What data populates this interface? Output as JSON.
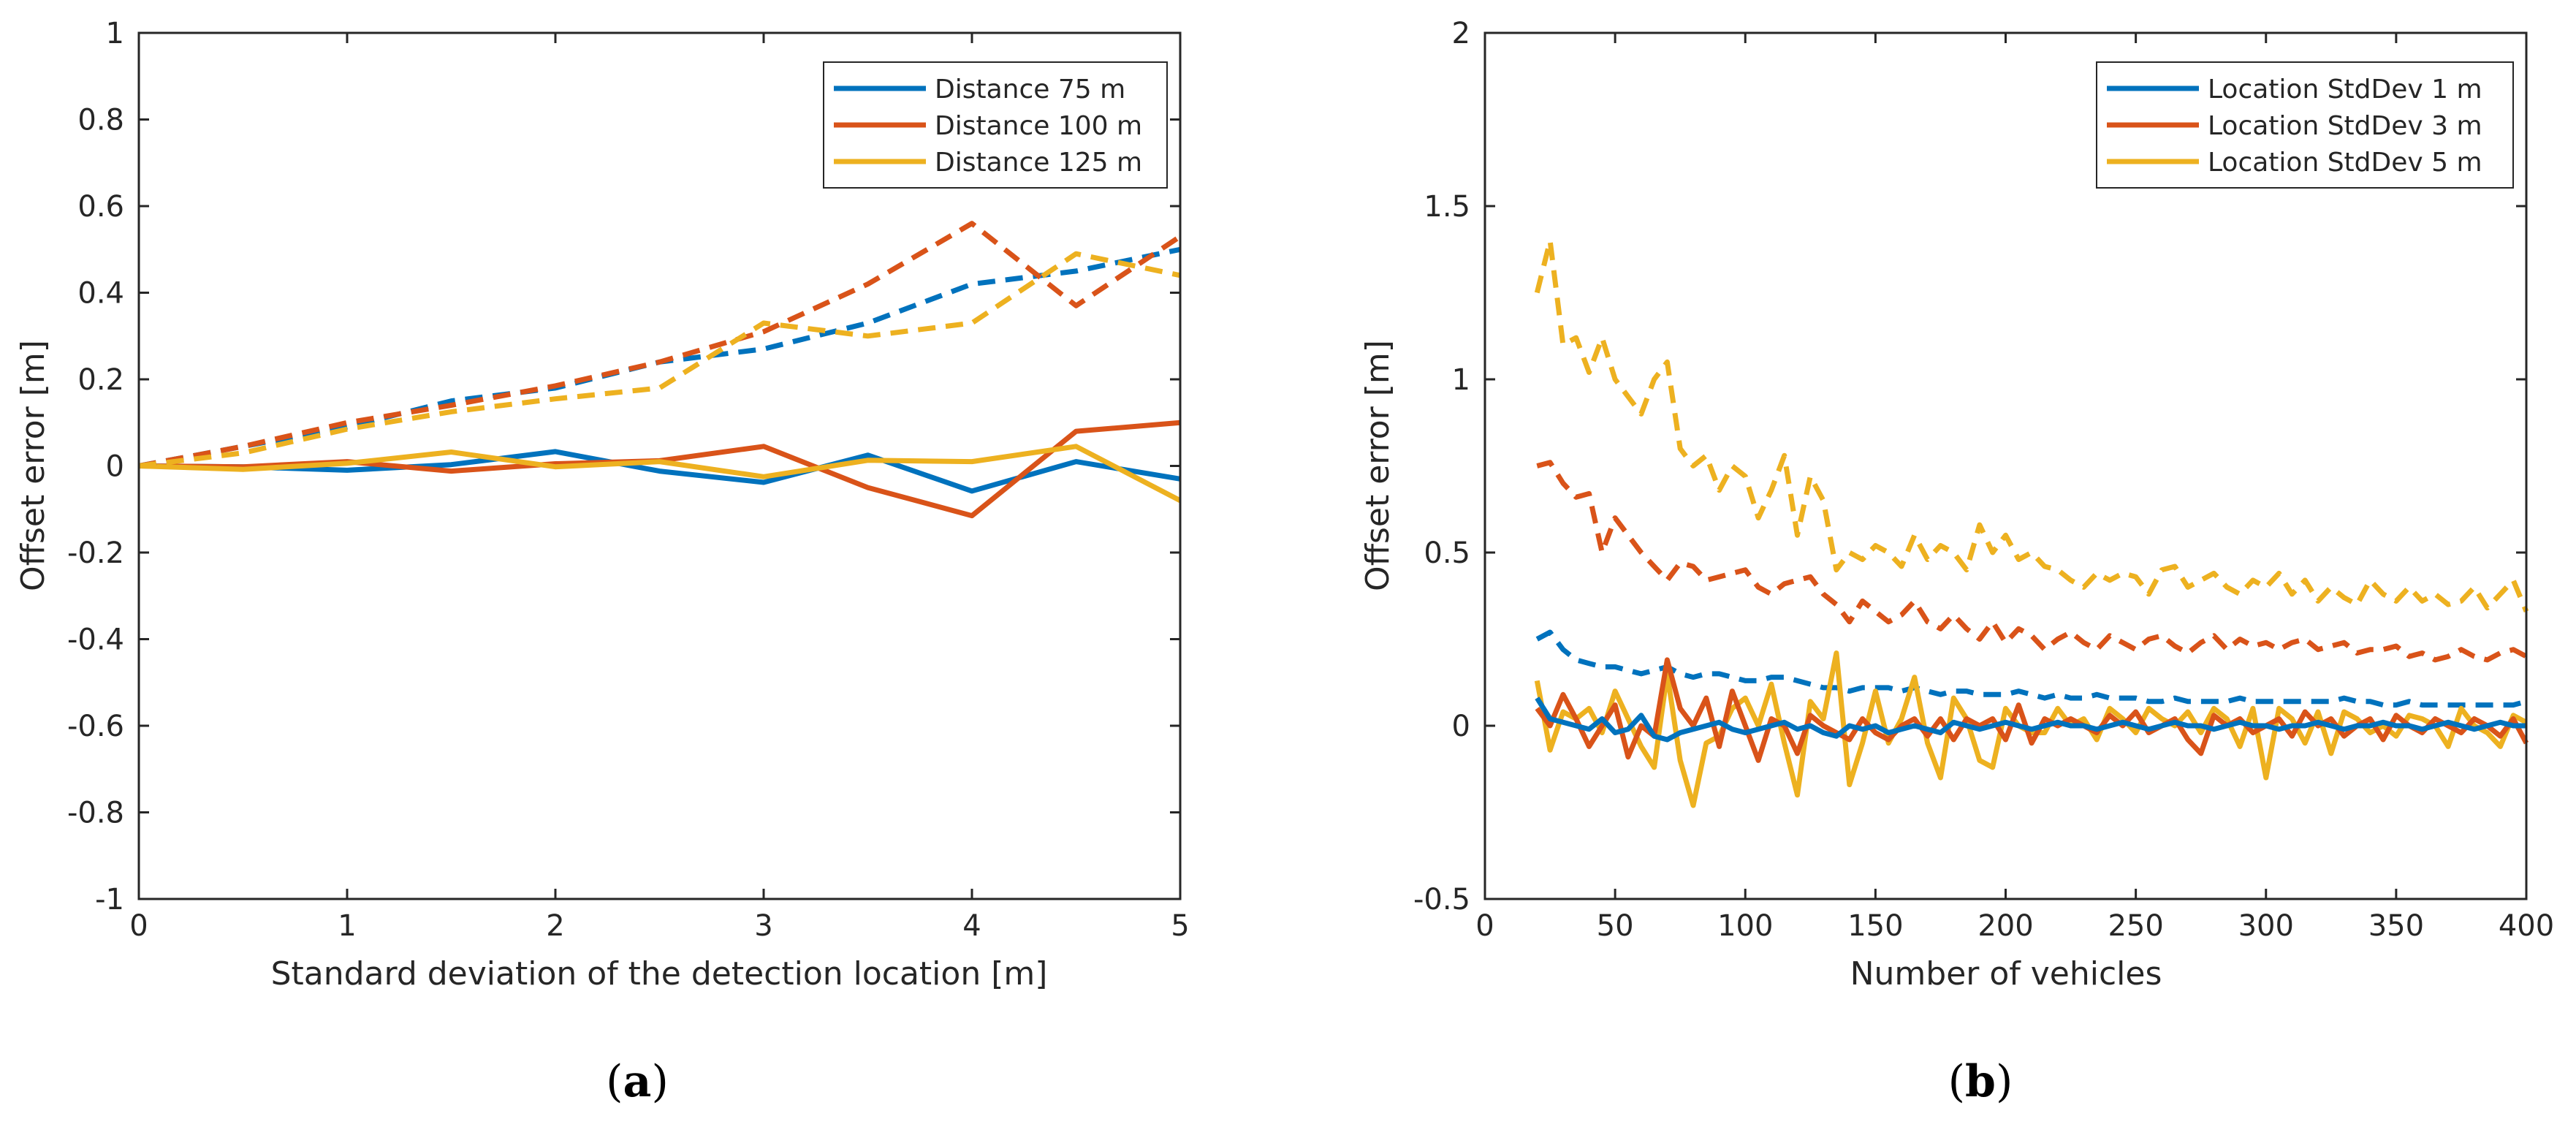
{
  "colors": {
    "blue": "#0072BD",
    "orange": "#D95319",
    "yellow": "#EDB120",
    "axis": "#262626"
  },
  "chart_data": [
    {
      "id": "a",
      "type": "line",
      "caption": "a",
      "xlabel": "Standard deviation of the detection location [m]",
      "ylabel": "Offset error [m]",
      "xlim": [
        0,
        5
      ],
      "ylim": [
        -1,
        1
      ],
      "xticks": [
        0,
        1,
        2,
        3,
        4,
        5
      ],
      "xtick_labels": [
        "0",
        "1",
        "2",
        "3",
        "4",
        "5"
      ],
      "yticks": [
        -1,
        -0.8,
        -0.6,
        -0.4,
        -0.2,
        0,
        0.2,
        0.4,
        0.6,
        0.8,
        1
      ],
      "ytick_labels": [
        "-1",
        "-0.8",
        "-0.6",
        "-0.4",
        "-0.2",
        "0",
        "0.2",
        "0.4",
        "0.6",
        "0.8",
        "1"
      ],
      "legend_position": "top-right",
      "legend": [
        {
          "label": "Distance 75 m",
          "color": "blue"
        },
        {
          "label": "Distance 100 m",
          "color": "orange"
        },
        {
          "label": "Distance 125 m",
          "color": "yellow"
        }
      ],
      "x": [
        0,
        0.5,
        1,
        1.5,
        2,
        2.5,
        3,
        3.5,
        4,
        4.5,
        5
      ],
      "series": [
        {
          "name": "Distance 75 m (solid)",
          "color": "blue",
          "dash": false,
          "values": [
            0,
            -0.002,
            -0.01,
            0.003,
            0.033,
            -0.012,
            -0.038,
            0.025,
            -0.058,
            0.01,
            -0.03
          ]
        },
        {
          "name": "Distance 100 m (solid)",
          "color": "orange",
          "dash": false,
          "values": [
            0,
            -0.002,
            0.01,
            -0.012,
            0.005,
            0.012,
            0.045,
            -0.05,
            -0.115,
            0.08,
            0.1
          ]
        },
        {
          "name": "Distance 125 m (solid)",
          "color": "yellow",
          "dash": false,
          "values": [
            0,
            -0.008,
            0.006,
            0.032,
            -0.002,
            0.01,
            -0.025,
            0.013,
            0.01,
            0.045,
            -0.08
          ]
        },
        {
          "name": "Distance 75 m (dashed)",
          "color": "blue",
          "dash": true,
          "values": [
            0,
            0.045,
            0.09,
            0.15,
            0.18,
            0.24,
            0.27,
            0.33,
            0.42,
            0.45,
            0.5
          ]
        },
        {
          "name": "Distance 100 m (dashed)",
          "color": "orange",
          "dash": true,
          "values": [
            0,
            0.045,
            0.1,
            0.14,
            0.185,
            0.24,
            0.31,
            0.42,
            0.56,
            0.37,
            0.53
          ]
        },
        {
          "name": "Distance 125 m (dashed)",
          "color": "yellow",
          "dash": true,
          "values": [
            0,
            0.03,
            0.085,
            0.125,
            0.155,
            0.18,
            0.33,
            0.3,
            0.33,
            0.49,
            0.44
          ]
        }
      ]
    },
    {
      "id": "b",
      "type": "line",
      "caption": "b",
      "xlabel": "Number of vehicles",
      "ylabel": "Offset error [m]",
      "xlim": [
        0,
        400
      ],
      "ylim": [
        -0.5,
        2
      ],
      "xticks": [
        0,
        50,
        100,
        150,
        200,
        250,
        300,
        350,
        400
      ],
      "xtick_labels": [
        "0",
        "50",
        "100",
        "150",
        "200",
        "250",
        "300",
        "350",
        "400"
      ],
      "yticks": [
        -0.5,
        0,
        0.5,
        1,
        1.5,
        2
      ],
      "ytick_labels": [
        "-0.5",
        "0",
        "0.5",
        "1",
        "1.5",
        "2"
      ],
      "legend_position": "top-right",
      "legend": [
        {
          "label": "Location StdDev 1 m",
          "color": "blue"
        },
        {
          "label": "Location StdDev 3 m",
          "color": "orange"
        },
        {
          "label": "Location StdDev 5 m",
          "color": "yellow"
        }
      ],
      "x": [
        20,
        25,
        30,
        35,
        40,
        45,
        50,
        55,
        60,
        65,
        70,
        75,
        80,
        85,
        90,
        95,
        100,
        105,
        110,
        115,
        120,
        125,
        130,
        135,
        140,
        145,
        150,
        155,
        160,
        165,
        170,
        175,
        180,
        185,
        190,
        195,
        200,
        205,
        210,
        215,
        220,
        225,
        230,
        235,
        240,
        245,
        250,
        255,
        260,
        265,
        270,
        275,
        280,
        285,
        290,
        295,
        300,
        305,
        310,
        315,
        320,
        325,
        330,
        335,
        340,
        345,
        350,
        355,
        360,
        365,
        370,
        375,
        380,
        385,
        390,
        395,
        400
      ],
      "series": [
        {
          "name": "Location StdDev 5 m (dashed)",
          "color": "yellow",
          "dash": true,
          "values": [
            1.25,
            1.4,
            1.1,
            1.12,
            1.02,
            1.12,
            1.0,
            0.95,
            0.9,
            1.0,
            1.05,
            0.8,
            0.75,
            0.78,
            0.68,
            0.75,
            0.72,
            0.6,
            0.68,
            0.78,
            0.55,
            0.72,
            0.65,
            0.45,
            0.5,
            0.48,
            0.52,
            0.5,
            0.46,
            0.55,
            0.48,
            0.52,
            0.5,
            0.45,
            0.58,
            0.5,
            0.55,
            0.48,
            0.5,
            0.46,
            0.45,
            0.42,
            0.4,
            0.44,
            0.42,
            0.44,
            0.43,
            0.38,
            0.45,
            0.46,
            0.4,
            0.42,
            0.44,
            0.4,
            0.38,
            0.42,
            0.4,
            0.44,
            0.38,
            0.42,
            0.36,
            0.4,
            0.37,
            0.35,
            0.42,
            0.38,
            0.36,
            0.4,
            0.36,
            0.38,
            0.35,
            0.36,
            0.4,
            0.34,
            0.38,
            0.42,
            0.33
          ]
        },
        {
          "name": "Location StdDev 3 m (dashed)",
          "color": "orange",
          "dash": true,
          "values": [
            0.75,
            0.76,
            0.7,
            0.66,
            0.67,
            0.5,
            0.6,
            0.55,
            0.5,
            0.46,
            0.42,
            0.47,
            0.46,
            0.42,
            0.43,
            0.44,
            0.45,
            0.4,
            0.38,
            0.41,
            0.42,
            0.43,
            0.38,
            0.35,
            0.3,
            0.36,
            0.33,
            0.3,
            0.32,
            0.36,
            0.3,
            0.28,
            0.32,
            0.28,
            0.25,
            0.3,
            0.24,
            0.28,
            0.26,
            0.22,
            0.25,
            0.27,
            0.24,
            0.22,
            0.26,
            0.24,
            0.22,
            0.25,
            0.26,
            0.23,
            0.21,
            0.24,
            0.26,
            0.22,
            0.25,
            0.23,
            0.24,
            0.22,
            0.24,
            0.25,
            0.22,
            0.23,
            0.24,
            0.21,
            0.22,
            0.22,
            0.23,
            0.2,
            0.21,
            0.19,
            0.2,
            0.22,
            0.2,
            0.19,
            0.21,
            0.22,
            0.2
          ]
        },
        {
          "name": "Location StdDev 1 m (dashed)",
          "color": "blue",
          "dash": true,
          "values": [
            0.25,
            0.27,
            0.22,
            0.19,
            0.18,
            0.17,
            0.17,
            0.16,
            0.15,
            0.16,
            0.17,
            0.15,
            0.14,
            0.15,
            0.15,
            0.14,
            0.13,
            0.13,
            0.14,
            0.14,
            0.13,
            0.12,
            0.11,
            0.11,
            0.1,
            0.11,
            0.11,
            0.11,
            0.1,
            0.11,
            0.1,
            0.09,
            0.1,
            0.1,
            0.09,
            0.09,
            0.09,
            0.1,
            0.09,
            0.08,
            0.09,
            0.08,
            0.08,
            0.09,
            0.08,
            0.08,
            0.08,
            0.07,
            0.07,
            0.08,
            0.07,
            0.07,
            0.07,
            0.07,
            0.08,
            0.07,
            0.07,
            0.07,
            0.07,
            0.07,
            0.07,
            0.07,
            0.08,
            0.07,
            0.07,
            0.06,
            0.06,
            0.07,
            0.06,
            0.06,
            0.06,
            0.06,
            0.06,
            0.06,
            0.06,
            0.06,
            0.07
          ]
        },
        {
          "name": "Location StdDev 5 m (solid)",
          "color": "yellow",
          "dash": false,
          "values": [
            0.13,
            -0.07,
            0.04,
            0.02,
            0.05,
            -0.02,
            0.1,
            0.02,
            -0.06,
            -0.12,
            0.15,
            -0.1,
            -0.23,
            -0.05,
            -0.03,
            0.05,
            0.08,
            0.0,
            0.12,
            -0.05,
            -0.2,
            0.07,
            0.02,
            0.21,
            -0.17,
            -0.05,
            0.1,
            -0.05,
            0.02,
            0.14,
            -0.05,
            -0.15,
            0.08,
            0.02,
            -0.1,
            -0.12,
            0.05,
            0.0,
            -0.02,
            -0.02,
            0.05,
            0.0,
            0.02,
            -0.04,
            0.05,
            0.02,
            -0.02,
            0.05,
            0.02,
            0.0,
            0.04,
            -0.02,
            0.05,
            0.02,
            -0.06,
            0.05,
            -0.15,
            0.05,
            0.02,
            -0.05,
            0.04,
            -0.08,
            0.04,
            0.02,
            -0.02,
            0.0,
            -0.03,
            0.03,
            0.02,
            0.0,
            -0.06,
            0.05,
            0.0,
            -0.02,
            -0.06,
            0.03,
            0.01
          ]
        },
        {
          "name": "Location StdDev 3 m (solid)",
          "color": "orange",
          "dash": false,
          "values": [
            0.05,
            0.0,
            0.09,
            0.02,
            -0.06,
            0.0,
            0.06,
            -0.09,
            0.0,
            -0.03,
            0.19,
            0.05,
            0.0,
            0.08,
            -0.06,
            0.1,
            0.0,
            -0.1,
            0.02,
            0.0,
            -0.08,
            0.03,
            0.0,
            -0.02,
            -0.04,
            0.02,
            -0.02,
            -0.04,
            0.0,
            0.02,
            -0.03,
            0.02,
            -0.04,
            0.02,
            0.0,
            0.02,
            -0.04,
            0.06,
            -0.05,
            0.02,
            0.0,
            0.02,
            0.0,
            -0.02,
            0.03,
            0.0,
            0.04,
            -0.02,
            0.0,
            0.02,
            -0.04,
            -0.08,
            0.03,
            0.0,
            0.02,
            -0.02,
            0.0,
            0.02,
            -0.03,
            0.04,
            0.0,
            0.02,
            -0.03,
            0.0,
            0.02,
            -0.04,
            0.03,
            0.0,
            -0.02,
            0.02,
            0.0,
            -0.02,
            0.02,
            0.0,
            -0.03,
            0.02,
            -0.05
          ]
        },
        {
          "name": "Location StdDev 1 m (solid)",
          "color": "blue",
          "dash": false,
          "values": [
            0.08,
            0.02,
            0.01,
            0.0,
            -0.01,
            0.02,
            -0.02,
            -0.01,
            0.03,
            -0.03,
            -0.04,
            -0.02,
            -0.01,
            0.0,
            0.01,
            -0.01,
            -0.02,
            -0.01,
            0.0,
            0.01,
            -0.01,
            0.0,
            -0.02,
            -0.03,
            0.0,
            -0.01,
            0.0,
            -0.02,
            -0.01,
            0.0,
            -0.01,
            -0.02,
            0.01,
            0.0,
            -0.01,
            0.0,
            0.01,
            0.0,
            -0.01,
            0.0,
            0.01,
            0.0,
            0.0,
            -0.01,
            0.0,
            0.01,
            0.0,
            -0.01,
            0.0,
            0.01,
            0.0,
            0.0,
            -0.01,
            0.0,
            0.01,
            0.0,
            0.0,
            -0.01,
            0.0,
            0.0,
            0.01,
            0.0,
            -0.01,
            0.0,
            0.0,
            0.01,
            0.0,
            0.0,
            -0.01,
            0.0,
            0.01,
            0.0,
            -0.01,
            0.0,
            0.01,
            0.0,
            0.0
          ]
        }
      ]
    }
  ]
}
